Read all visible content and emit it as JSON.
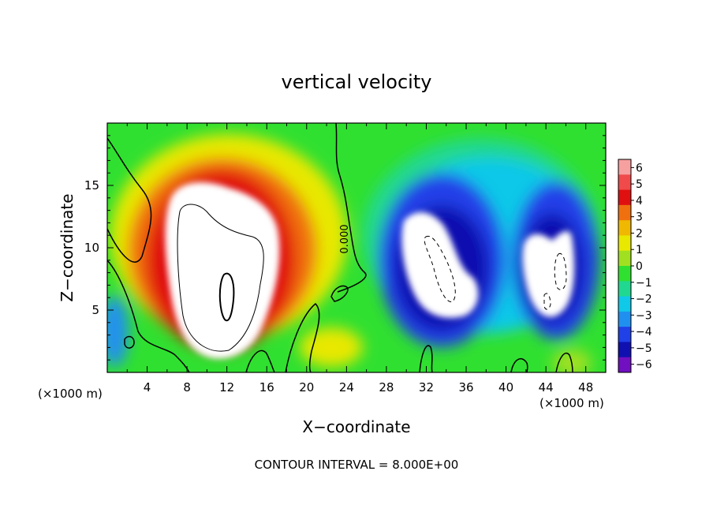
{
  "chart_data": {
    "type": "heatmap",
    "title": "vertical velocity",
    "xlabel": "X−coordinate",
    "ylabel": "Z−coordinate",
    "x_unit_left": "(×1000 m)",
    "x_unit_right": "(×1000 m)",
    "x_ticks": [
      "4",
      "8",
      "12",
      "16",
      "20",
      "24",
      "28",
      "32",
      "36",
      "40",
      "44",
      "48"
    ],
    "y_ticks": [
      "5",
      "10",
      "15"
    ],
    "xlim": [
      0,
      50
    ],
    "ylim": [
      0,
      20
    ],
    "colorbar": {
      "labels": [
        "6",
        "5",
        "4",
        "3",
        "2",
        "1",
        "0",
        "−1",
        "−2",
        "−3",
        "−4",
        "−5",
        "−6"
      ],
      "colors": [
        "#f7a0a0",
        "#f04a4a",
        "#e01010",
        "#f07010",
        "#f0b800",
        "#e8e800",
        "#a0e020",
        "#30e030",
        "#20d890",
        "#10c8e8",
        "#2090f0",
        "#2040e8",
        "#1010b0",
        "#7010c0"
      ]
    },
    "contour_label": "0.000",
    "annotation": "CONTOUR INTERVAL = 8.000E+00",
    "features": [
      {
        "name": "updraft",
        "x_center": 11,
        "z_center": 9,
        "value": "> 6"
      },
      {
        "name": "downdraft-1",
        "x_center": 34,
        "z_center": 8,
        "value": "< -6"
      },
      {
        "name": "downdraft-2",
        "x_center": 45,
        "z_center": 8,
        "value": "< -6"
      }
    ]
  }
}
